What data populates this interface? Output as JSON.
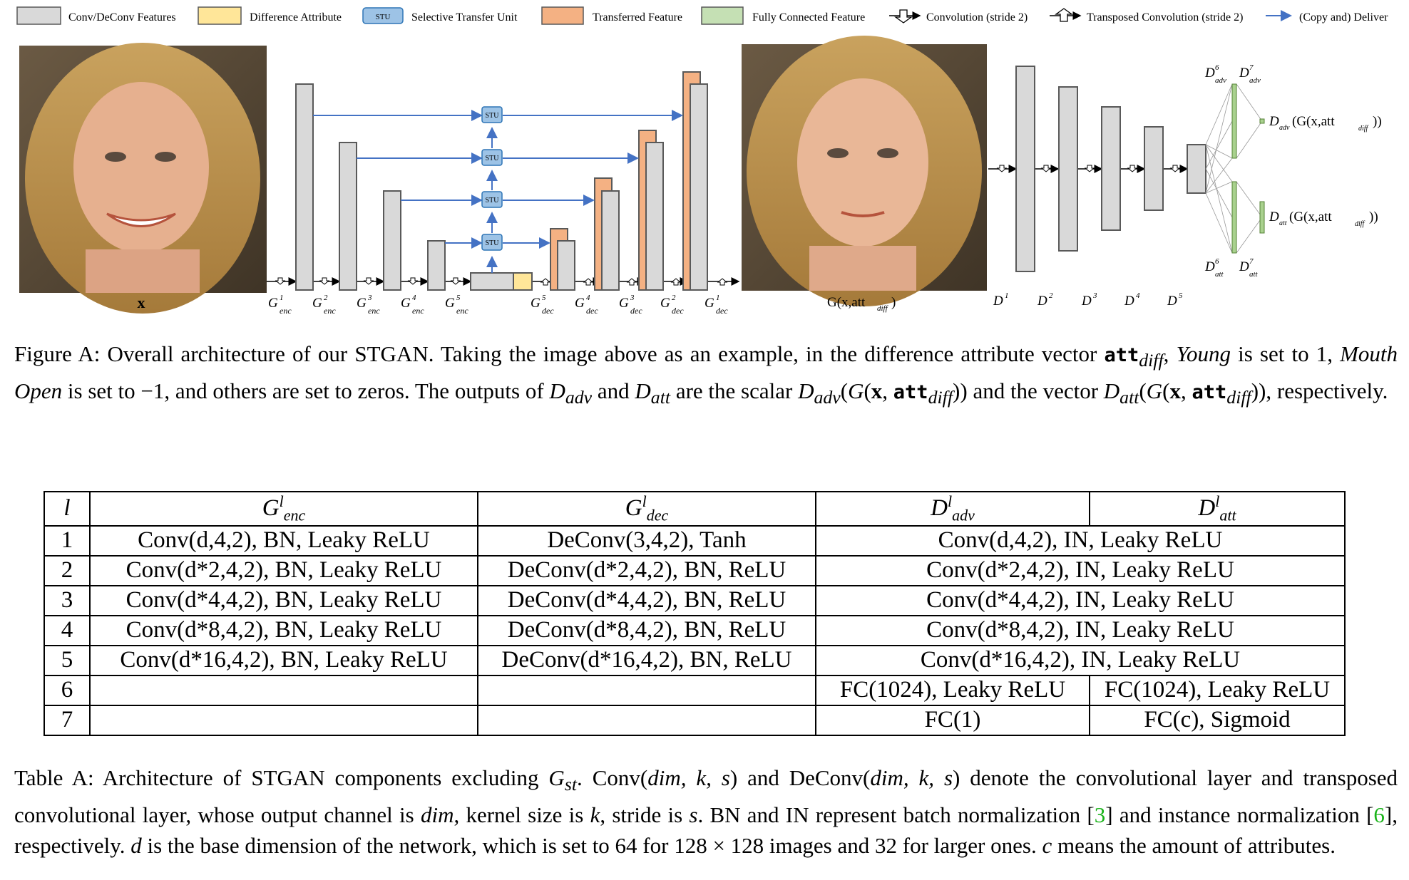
{
  "legend": {
    "items": [
      {
        "label": "Conv/DeConv Features",
        "color": "#d9d9d9"
      },
      {
        "label": "Difference Attribute",
        "color": "#ffe699"
      },
      {
        "label": "Selective Transfer Unit",
        "color": "#9dc3e6",
        "badge": "STU"
      },
      {
        "label": "Transferred Feature",
        "color": "#f4b183"
      },
      {
        "label": "Fully Connected Feature",
        "color": "#c5e0b4"
      },
      {
        "label": "Convolution (stride 2)",
        "icon": "conv-arrow-icon"
      },
      {
        "label": "Transposed Convolution (stride 2)",
        "icon": "deconv-arrow-icon"
      },
      {
        "label": "(Copy and) Deliver",
        "icon": "deliver-arrow-icon"
      }
    ]
  },
  "diagram": {
    "input_label": "x",
    "output_label": "G(x,att",
    "output_sub": "diff",
    "output_close": ")",
    "stu_label": "STU",
    "enc_labels": [
      "1",
      "2",
      "3",
      "4",
      "5"
    ],
    "dec_labels": [
      "5",
      "4",
      "3",
      "2",
      "1"
    ],
    "enc_prefix": "G",
    "enc_sub": "enc",
    "dec_sub": "dec",
    "disc_prefix": "D",
    "disc_labels": [
      "1",
      "2",
      "3",
      "4",
      "5"
    ],
    "dadv_out": "(G(x,att",
    "datt_out": "(G(x,att",
    "adv_sub": "adv",
    "att_sub": "att",
    "diff_sub": "diff",
    "sup6": "6",
    "sup7": "7",
    "close": "))",
    "colors": {
      "conv": "#d9d9d9",
      "stroke": "#595959",
      "transfer": "#f4b183",
      "diff": "#ffe699",
      "stu": "#9dc3e6",
      "fc": "#a9d18e",
      "arrow": "#4472c4"
    }
  },
  "figure_caption": {
    "prefix": "Figure A: Overall architecture of our STGAN. Taking the image above as an example, in the difference attribute vector ",
    "att": "att",
    "diff": "diff",
    "c1": ", ",
    "young": "Young",
    "c2": " is set to 1, ",
    "mouth": "Mouth Open",
    "c3": " is set to −1, and others are set to zeros. The outputs of ",
    "d": "D",
    "adv": "adv",
    "and": " and ",
    "attsub": "att",
    "c4": " are the scalar ",
    "c5": " and the vector ",
    "c6": ", respectively."
  },
  "table": {
    "headers": {
      "l": "l",
      "enc": "G",
      "enc_sub": "enc",
      "dec": "G",
      "dec_sub": "dec",
      "adv": "D",
      "adv_sub": "adv",
      "att": "D",
      "att_sub": "att",
      "sup": "l"
    },
    "rows": [
      {
        "l": "1",
        "enc": "Conv(d,4,2), BN, Leaky ReLU",
        "dec": "DeConv(3,4,2), Tanh",
        "shared": "Conv(d,4,2), IN, Leaky ReLU"
      },
      {
        "l": "2",
        "enc": "Conv(d*2,4,2), BN, Leaky ReLU",
        "dec": "DeConv(d*2,4,2), BN, ReLU",
        "shared": "Conv(d*2,4,2), IN, Leaky ReLU"
      },
      {
        "l": "3",
        "enc": "Conv(d*4,4,2), BN, Leaky ReLU",
        "dec": "DeConv(d*4,4,2), BN, ReLU",
        "shared": "Conv(d*4,4,2), IN, Leaky ReLU"
      },
      {
        "l": "4",
        "enc": "Conv(d*8,4,2), BN, Leaky ReLU",
        "dec": "DeConv(d*8,4,2), BN, ReLU",
        "shared": "Conv(d*8,4,2), IN, Leaky ReLU"
      },
      {
        "l": "5",
        "enc": "Conv(d*16,4,2), BN, Leaky ReLU",
        "dec": "DeConv(d*16,4,2), BN, ReLU",
        "shared": "Conv(d*16,4,2), IN, Leaky ReLU"
      }
    ],
    "row6": {
      "l": "6",
      "adv": "FC(1024), Leaky ReLU",
      "att": "FC(1024), Leaky ReLU"
    },
    "row7": {
      "l": "7",
      "adv": "FC(1)",
      "att": "FC(c), Sigmoid"
    }
  },
  "table_caption": {
    "p1": "Table A: Architecture of STGAN components excluding ",
    "gst": "G",
    "st": "st",
    "p2": ". Conv(",
    "args": "dim, k, s",
    "p3": ") and DeConv(",
    "p4": ") denote the convolutional layer and transposed convolutional layer, whose output channel is ",
    "dim": "dim",
    "p5": ", kernel size is ",
    "k": "k",
    "p6": ", stride is ",
    "s": "s",
    "p7": ". BN and IN represent batch normalization [",
    "ref3": "3",
    "p8": "] and instance normalization [",
    "ref6": "6",
    "p9": "], respectively. ",
    "d": "d",
    "p10": " is the base dimension of the network, which is set to 64 for 128 × 128 images and 32 for larger ones. ",
    "c": "c",
    "p11": " means the amount of attributes."
  }
}
